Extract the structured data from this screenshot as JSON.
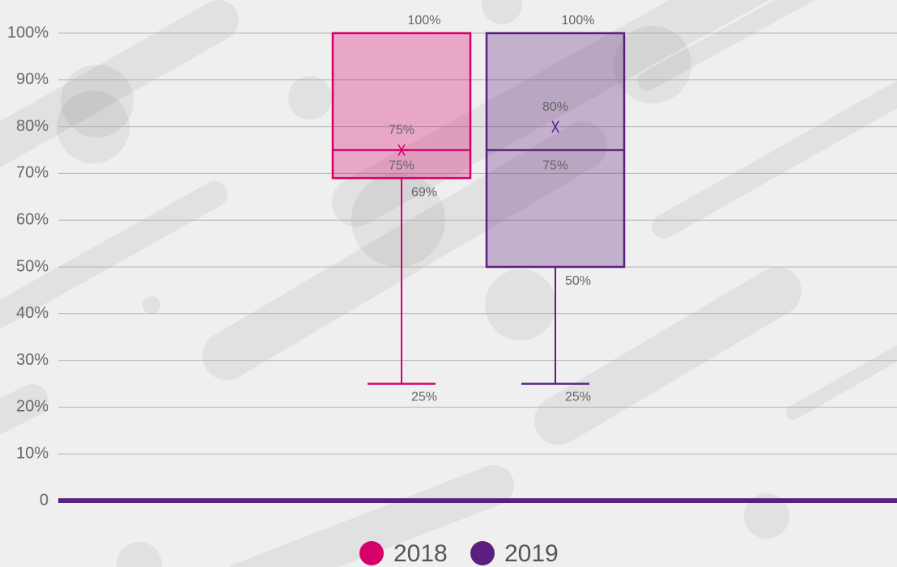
{
  "chart_data": {
    "type": "box",
    "categories": [
      "2018",
      "2019"
    ],
    "ylim": [
      0,
      100
    ],
    "yticks": [
      0,
      {
        "value": 10,
        "label": "10%"
      },
      {
        "value": 20,
        "label": "20%"
      },
      {
        "value": 30,
        "label": "30%"
      },
      {
        "value": 40,
        "label": "40%"
      },
      {
        "value": 50,
        "label": "50%"
      },
      {
        "value": 60,
        "label": "60%"
      },
      {
        "value": 70,
        "label": "70%"
      },
      {
        "value": 80,
        "label": "80%"
      },
      {
        "value": 90,
        "label": "90%"
      },
      {
        "value": 100,
        "label": "100%"
      }
    ],
    "grid": true,
    "series": [
      {
        "name": "2018",
        "color": "#d6006b",
        "min": 25,
        "q1": 69,
        "median": 75,
        "q3": 100,
        "max": 100,
        "mean": 75,
        "value_labels": {
          "max": "100%",
          "mean": "75%",
          "median": "75%",
          "q1": "69%",
          "min": "25%"
        }
      },
      {
        "name": "2019",
        "color": "#5b1f7f",
        "min": 25,
        "q1": 50,
        "median": 75,
        "q3": 100,
        "max": 100,
        "mean": 80,
        "value_labels": {
          "max": "100%",
          "mean": "80%",
          "median": "75%",
          "q1": "50%",
          "min": "25%"
        }
      }
    ],
    "axis_color": "#5b1f7f"
  }
}
